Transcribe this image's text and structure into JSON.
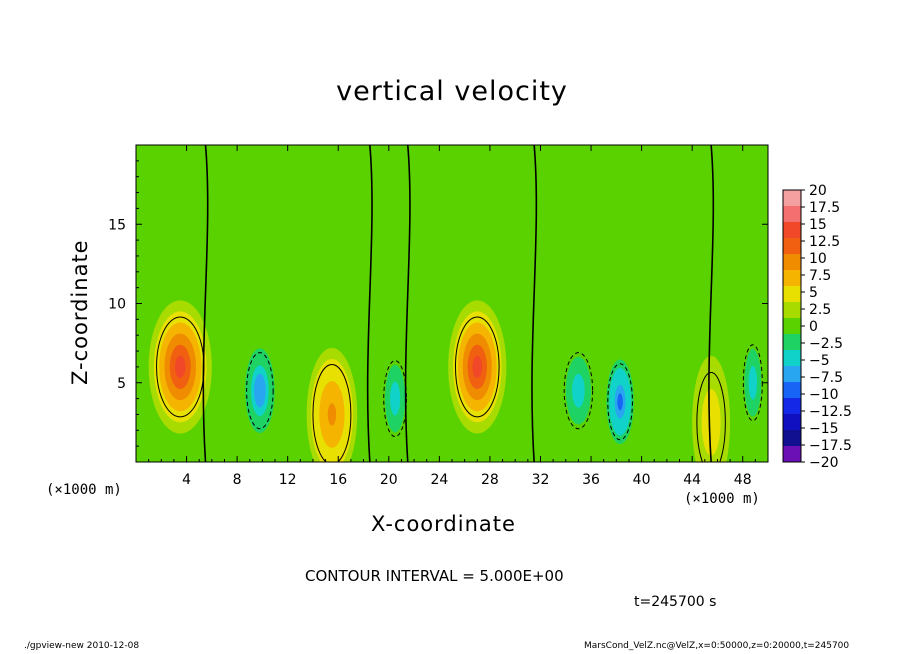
{
  "chart_data": {
    "type": "heatmap",
    "title": "vertical velocity",
    "xlabel": "X-coordinate",
    "ylabel": "Z-coordinate",
    "x_unit": "(×1000 m)",
    "xlim": [
      0,
      50
    ],
    "ylim": [
      0,
      20
    ],
    "x_ticks": [
      4,
      8,
      12,
      16,
      20,
      24,
      28,
      32,
      36,
      40,
      44,
      48
    ],
    "y_ticks": [
      5,
      10,
      15
    ],
    "colorbar": {
      "levels": [
        20,
        17.5,
        15,
        12.5,
        10,
        7.5,
        5,
        2.5,
        0,
        -2.5,
        -5,
        -7.5,
        -10,
        -12.5,
        -15,
        -17.5,
        -20
      ],
      "labels": [
        "20",
        "17.5",
        "15",
        "12.5",
        "10",
        "7.5",
        "5",
        "2.5",
        "0",
        "−2.5",
        "−5",
        "−7.5",
        "−10",
        "−12.5",
        "−15",
        "−17.5",
        "−20"
      ],
      "colors": [
        "#f4a0a0",
        "#f47070",
        "#f04828",
        "#f06010",
        "#f08c00",
        "#f4b400",
        "#e8e000",
        "#a8dc00",
        "#5ad200",
        "#1ed264",
        "#10d2c8",
        "#28a6f0",
        "#1864f4",
        "#1428e8",
        "#1010c0",
        "#101090",
        "#6a10b4"
      ]
    },
    "cells": [
      {
        "x": 3.5,
        "z": 6.0,
        "w": 2.5,
        "value": 13
      },
      {
        "x": 15.5,
        "z": 3.0,
        "w": 2.0,
        "value": 9
      },
      {
        "x": 27.0,
        "z": 6.0,
        "w": 2.3,
        "value": 14
      },
      {
        "x": 45.5,
        "z": 2.5,
        "w": 1.5,
        "value": 5
      },
      {
        "x": 9.8,
        "z": 4.5,
        "w": 1.4,
        "value": -9
      },
      {
        "x": 20.5,
        "z": 4.0,
        "w": 1.2,
        "value": -6
      },
      {
        "x": 35.0,
        "z": 4.5,
        "w": 1.5,
        "value": -6
      },
      {
        "x": 38.3,
        "z": 3.8,
        "w": 1.3,
        "value": -10
      },
      {
        "x": 48.8,
        "z": 5.0,
        "w": 1.0,
        "value": -6
      }
    ],
    "contour_interval": "CONTOUR INTERVAL = 5.000E+00",
    "time_label": "t=245700 s"
  },
  "footer": {
    "left": "./gpview-new   2010-12-08",
    "right": "MarsCond_VelZ.nc@VelZ,x=0:50000,z=0:20000,t=245700"
  }
}
